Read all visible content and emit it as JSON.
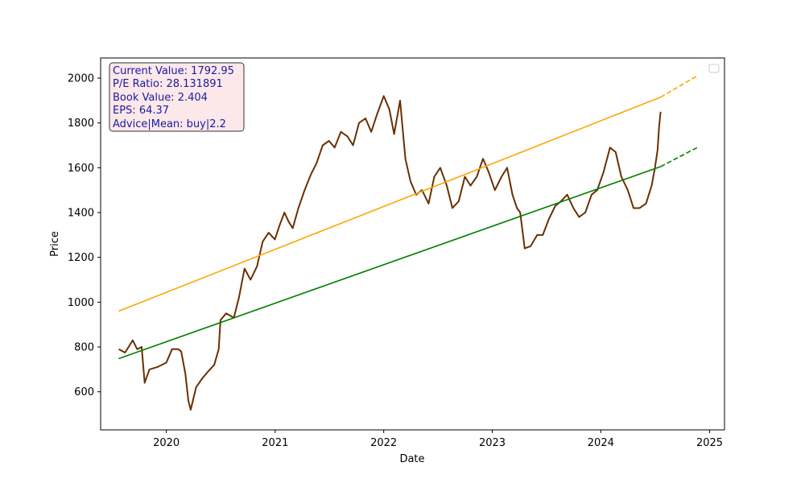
{
  "chart_data": {
    "type": "line",
    "xlabel": "Date",
    "ylabel": "Price",
    "xlim": [
      "2019-05-25",
      "2025-02-20"
    ],
    "ylim": [
      430,
      2090
    ],
    "x_ticks": [
      "2020",
      "2021",
      "2022",
      "2023",
      "2024",
      "2025"
    ],
    "y_ticks": [
      600,
      800,
      1000,
      1200,
      1400,
      1600,
      1800,
      2000
    ],
    "legend": {
      "placement": "top-right",
      "entries": []
    },
    "grid": false,
    "info_box": {
      "lines": [
        "Current Value: 1792.95",
        "P/E Ratio: 28.131891",
        "Book Value: 2.404",
        "EPS: 64.37",
        "Advice|Mean: buy|2.2"
      ],
      "background": "#fce8e8",
      "text_color": "#1a1aa6"
    },
    "series": [
      {
        "role": "price",
        "color": "#6b3000",
        "style": "solid",
        "x": [
          "2019-07-25",
          "2019-08-15",
          "2019-09-10",
          "2019-09-25",
          "2019-10-10",
          "2019-10-20",
          "2019-11-05",
          "2019-12-01",
          "2020-01-01",
          "2020-01-20",
          "2020-02-10",
          "2020-02-20",
          "2020-03-05",
          "2020-03-15",
          "2020-03-23",
          "2020-04-10",
          "2020-05-01",
          "2020-05-20",
          "2020-06-10",
          "2020-06-25",
          "2020-07-01",
          "2020-07-20",
          "2020-08-15",
          "2020-09-01",
          "2020-09-20",
          "2020-10-10",
          "2020-11-01",
          "2020-11-20",
          "2020-12-10",
          "2020-12-31",
          "2021-01-15",
          "2021-02-01",
          "2021-02-15",
          "2021-03-01",
          "2021-03-20",
          "2021-04-10",
          "2021-05-01",
          "2021-05-20",
          "2021-06-10",
          "2021-07-01",
          "2021-07-20",
          "2021-08-10",
          "2021-09-01",
          "2021-09-20",
          "2021-10-10",
          "2021-11-01",
          "2021-11-20",
          "2021-12-10",
          "2022-01-01",
          "2022-01-20",
          "2022-02-05",
          "2022-02-25",
          "2022-03-15",
          "2022-04-01",
          "2022-04-20",
          "2022-05-10",
          "2022-06-01",
          "2022-06-20",
          "2022-07-10",
          "2022-08-01",
          "2022-08-20",
          "2022-09-10",
          "2022-10-01",
          "2022-10-20",
          "2022-11-10",
          "2022-12-01",
          "2022-12-20",
          "2023-01-10",
          "2023-02-01",
          "2023-02-20",
          "2023-03-10",
          "2023-03-25",
          "2023-04-05",
          "2023-04-20",
          "2023-05-10",
          "2023-06-01",
          "2023-06-20",
          "2023-07-10",
          "2023-08-01",
          "2023-08-20",
          "2023-09-10",
          "2023-10-01",
          "2023-10-20",
          "2023-11-10",
          "2023-12-01",
          "2023-12-20",
          "2024-01-10",
          "2024-02-01",
          "2024-02-20",
          "2024-03-10",
          "2024-04-01",
          "2024-04-20",
          "2024-05-10",
          "2024-06-01",
          "2024-06-20",
          "2024-07-01",
          "2024-07-10",
          "2024-07-15",
          "2024-07-20"
        ],
        "y": [
          790,
          775,
          830,
          790,
          800,
          640,
          700,
          710,
          730,
          790,
          790,
          780,
          680,
          560,
          520,
          620,
          660,
          690,
          720,
          790,
          920,
          950,
          930,
          1020,
          1150,
          1100,
          1160,
          1270,
          1310,
          1280,
          1340,
          1400,
          1360,
          1330,
          1420,
          1500,
          1570,
          1620,
          1700,
          1720,
          1690,
          1760,
          1740,
          1700,
          1800,
          1820,
          1760,
          1840,
          1920,
          1860,
          1750,
          1900,
          1640,
          1540,
          1480,
          1500,
          1440,
          1560,
          1600,
          1520,
          1420,
          1450,
          1560,
          1520,
          1560,
          1640,
          1580,
          1500,
          1560,
          1600,
          1480,
          1420,
          1400,
          1240,
          1250,
          1300,
          1300,
          1370,
          1430,
          1450,
          1480,
          1420,
          1380,
          1400,
          1480,
          1500,
          1580,
          1690,
          1670,
          1560,
          1500,
          1420,
          1420,
          1440,
          1520,
          1600,
          1680,
          1780,
          1850
        ]
      },
      {
        "role": "upper-trend",
        "color": "#ffa500",
        "style": "solid",
        "x": [
          "2019-07-25",
          "2024-07-20"
        ],
        "y": [
          960,
          1915
        ]
      },
      {
        "role": "upper-trend-projection",
        "color": "#ffa500",
        "style": "dashed",
        "x": [
          "2024-07-20",
          "2024-11-20"
        ],
        "y": [
          1915,
          2010
        ]
      },
      {
        "role": "lower-trend",
        "color": "#008000",
        "style": "solid",
        "x": [
          "2019-07-25",
          "2024-07-20"
        ],
        "y": [
          748,
          1605
        ]
      },
      {
        "role": "lower-trend-projection",
        "color": "#008000",
        "style": "dashed",
        "x": [
          "2024-07-20",
          "2024-11-20"
        ],
        "y": [
          1605,
          1690
        ]
      }
    ]
  }
}
